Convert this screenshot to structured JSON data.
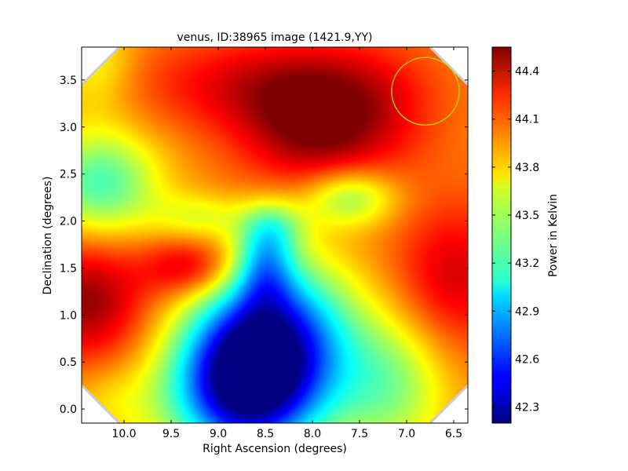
{
  "chart_data": {
    "type": "heatmap",
    "title": "venus, ID:38965 image (1421.9,YY)",
    "xlabel": "Right Ascension (degrees)",
    "ylabel": "Declination (degrees)",
    "xlim": [
      10.45,
      6.35
    ],
    "ylim": [
      -0.15,
      3.85
    ],
    "x_inverted": true,
    "xticks": [
      10.0,
      9.5,
      9.0,
      8.5,
      8.0,
      7.5,
      7.0,
      6.5
    ],
    "xtick_labels": [
      "10.0",
      "9.5",
      "9.0",
      "8.5",
      "8.0",
      "7.5",
      "7.0",
      "6.5"
    ],
    "yticks": [
      0.0,
      0.5,
      1.0,
      1.5,
      2.0,
      2.5,
      3.0,
      3.5
    ],
    "ytick_labels": [
      "0.0",
      "0.5",
      "1.0",
      "1.5",
      "2.0",
      "2.5",
      "3.0",
      "3.5"
    ],
    "colorbar": {
      "label": "Power in Kelvin",
      "colormap": "jet",
      "min": 42.2,
      "max": 44.55,
      "ticks": [
        42.3,
        42.6,
        42.9,
        43.2,
        43.5,
        43.8,
        44.1,
        44.4
      ],
      "tick_labels": [
        "42.3",
        "42.6",
        "42.9",
        "43.2",
        "43.5",
        "43.8",
        "44.1",
        "44.4"
      ]
    },
    "features": [
      {
        "ra": 8.0,
        "dec": 3.0,
        "value": 44.5
      },
      {
        "ra": 10.4,
        "dec": 1.15,
        "value": 44.5
      },
      {
        "ra": 9.3,
        "dec": 1.5,
        "value": 44.4
      },
      {
        "ra": 6.5,
        "dec": 1.4,
        "value": 44.35
      },
      {
        "ra": 8.7,
        "dec": 0.3,
        "value": 42.25
      },
      {
        "ra": 10.2,
        "dec": 2.4,
        "value": 43.3
      },
      {
        "ra": 7.6,
        "dec": 2.25,
        "value": 43.45
      },
      {
        "ra": 8.4,
        "dec": 1.9,
        "value": 43.6
      }
    ],
    "beam_circle": {
      "ra": 6.8,
      "dec": 3.38,
      "radius_deg": 0.36,
      "color": "#b8d800"
    }
  }
}
